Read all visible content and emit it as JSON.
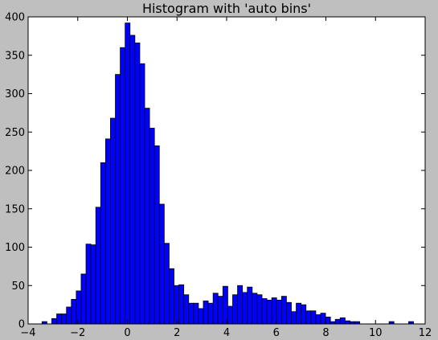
{
  "chart_data": {
    "type": "bar",
    "title": "Histogram with 'auto bins'",
    "xlabel": "",
    "ylabel": "",
    "xlim": [
      -4,
      12
    ],
    "ylim": [
      0,
      400
    ],
    "x_ticks": [
      -4,
      -2,
      0,
      2,
      4,
      6,
      8,
      10,
      12
    ],
    "y_ticks": [
      0,
      50,
      100,
      150,
      200,
      250,
      300,
      350,
      400
    ],
    "x_tick_labels": [
      "−4",
      "−2",
      "0",
      "2",
      "4",
      "6",
      "8",
      "10",
      "12"
    ],
    "y_tick_labels": [
      "0",
      "50",
      "100",
      "150",
      "200",
      "250",
      "300",
      "350",
      "400"
    ],
    "grid": false,
    "legend": "none",
    "bar_color": "#0000ff",
    "edge_color": "#000000",
    "background": "#ffffff",
    "figure_background": "#bfbfbf",
    "bin_start": -3.44,
    "bin_width": 0.197,
    "values": [
      3,
      0,
      7,
      13,
      13,
      22,
      32,
      43,
      65,
      104,
      103,
      152,
      210,
      241,
      268,
      325,
      360,
      392,
      376,
      366,
      339,
      281,
      255,
      232,
      156,
      105,
      72,
      50,
      51,
      38,
      27,
      27,
      20,
      30,
      27,
      40,
      36,
      49,
      23,
      38,
      50,
      41,
      48,
      40,
      38,
      33,
      31,
      34,
      31,
      36,
      28,
      16,
      27,
      25,
      17,
      17,
      12,
      14,
      9,
      3,
      6,
      8,
      4,
      3,
      3,
      0,
      0,
      0,
      0,
      0,
      0,
      3,
      0,
      0,
      0,
      3
    ]
  }
}
